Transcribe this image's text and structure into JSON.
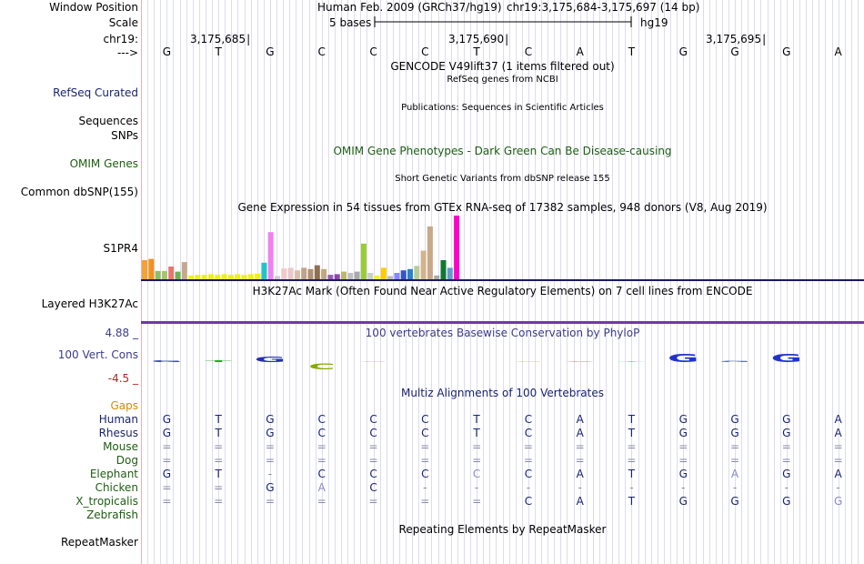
{
  "header": {
    "window_label": "Window Position",
    "assembly": "Human Feb. 2009 (GRCh37/hg19)",
    "position": "chr19:3,175,684-3,175,697 (14 bp)",
    "scale_label": "Scale",
    "scale_text": "5 bases",
    "scale_db": "hg19",
    "chrom_label": "chr19:",
    "strand_label": "--->",
    "coords": [
      "3,175,685",
      "3,175,690",
      "3,175,695"
    ]
  },
  "sequence": [
    "G",
    "T",
    "G",
    "C",
    "C",
    "C",
    "T",
    "C",
    "A",
    "T",
    "G",
    "G",
    "G",
    "A"
  ],
  "tracks": {
    "gencode_title": "GENCODE V49lift37 (1 items filtered out)",
    "refseq_title": "RefSeq genes from NCBI",
    "refseq_label": "RefSeq Curated",
    "pubs_title": "Publications: Sequences in Scientific Articles",
    "sequences_label": "Sequences",
    "snps_label": "SNPs",
    "omim_title": "OMIM Gene Phenotypes - Dark Green Can Be Disease-causing",
    "omim_label": "OMIM Genes",
    "dbsnp_title": "Short Genetic Variants from dbSNP release 155",
    "dbsnp_label": "Common dbSNP(155)",
    "gtex_title": "Gene Expression in 54 tissues from GTEx RNA-seq of 17382 samples, 948 donors (V8, Aug 2019)",
    "gtex_label": "S1PR4",
    "h3k_title": "H3K27Ac Mark (Often Found Near Active Regulatory Elements) on 7 cell lines from ENCODE",
    "h3k_label": "Layered H3K27Ac",
    "phylop_title": "100 vertebrates Basewise Conservation by PhyloP",
    "phylop_label": "100 Vert. Cons",
    "phylop_max": "4.88 _",
    "phylop_min": "-4.5 _",
    "multiz_title": "Multiz Alignments of 100 Vertebrates",
    "gaps_label": "Gaps",
    "repeat_title": "Repeating Elements by RepeatMasker",
    "repeat_label": "RepeatMasker"
  },
  "colors": {
    "h3k_line": "#1a1a5e",
    "phylop_line": "#6f3aa6",
    "gtex_max": "#ff00cc",
    "species_text": "#1d5e12",
    "human_text": "#1a2370"
  },
  "gtex": [
    {
      "v": 0.3,
      "c": "#f4a234"
    },
    {
      "v": 0.32,
      "c": "#f09122"
    },
    {
      "v": 0.13,
      "c": "#8fbc6a"
    },
    {
      "v": 0.13,
      "c": "#a7c46b"
    },
    {
      "v": 0.2,
      "c": "#e97571"
    },
    {
      "v": 0.12,
      "c": "#6eb15a"
    },
    {
      "v": 0.27,
      "c": "#c6a890"
    },
    {
      "v": 0.06,
      "c": "#eeee22"
    },
    {
      "v": 0.07,
      "c": "#eeee22"
    },
    {
      "v": 0.07,
      "c": "#eeee22"
    },
    {
      "v": 0.08,
      "c": "#eeee22"
    },
    {
      "v": 0.07,
      "c": "#eeee22"
    },
    {
      "v": 0.08,
      "c": "#eeee22"
    },
    {
      "v": 0.07,
      "c": "#eeee22"
    },
    {
      "v": 0.08,
      "c": "#eeee22"
    },
    {
      "v": 0.07,
      "c": "#eeee22"
    },
    {
      "v": 0.08,
      "c": "#eeee22"
    },
    {
      "v": 0.09,
      "c": "#eeee22"
    },
    {
      "v": 0.26,
      "c": "#22c4cc"
    },
    {
      "v": 0.74,
      "c": "#ee82ee"
    },
    {
      "v": 0.05,
      "c": "#cccccc"
    },
    {
      "v": 0.17,
      "c": "#f2c8c8"
    },
    {
      "v": 0.18,
      "c": "#e8c8c8"
    },
    {
      "v": 0.14,
      "c": "#d8c0a8"
    },
    {
      "v": 0.18,
      "c": "#bfa38a"
    },
    {
      "v": 0.16,
      "c": "#b09070"
    },
    {
      "v": 0.22,
      "c": "#8c7050"
    },
    {
      "v": 0.16,
      "c": "#c0a880"
    },
    {
      "v": 0.07,
      "c": "#9b59b6"
    },
    {
      "v": 0.08,
      "c": "#8e44ad"
    },
    {
      "v": 0.12,
      "c": "#bdb76b"
    },
    {
      "v": 0.1,
      "c": "#c0c0c0"
    },
    {
      "v": 0.12,
      "c": "#aaaaaa"
    },
    {
      "v": 0.56,
      "c": "#99cc33"
    },
    {
      "v": 0.1,
      "c": "#cccccc"
    },
    {
      "v": 0.06,
      "c": "#f0f030"
    },
    {
      "v": 0.18,
      "c": "#ffcc00"
    },
    {
      "v": 0.05,
      "c": "#bbbbbb"
    },
    {
      "v": 0.1,
      "c": "#8888ff"
    },
    {
      "v": 0.14,
      "c": "#3355cc"
    },
    {
      "v": 0.16,
      "c": "#2a82c8"
    },
    {
      "v": 0.21,
      "c": "#b8cc99"
    },
    {
      "v": 0.45,
      "c": "#d2b48c"
    },
    {
      "v": 0.83,
      "c": "#c9a88a"
    },
    {
      "v": 0.06,
      "c": "#aaaaaa"
    },
    {
      "v": 0.3,
      "c": "#117733"
    },
    {
      "v": 0.18,
      "c": "#6699cc"
    },
    {
      "v": 1.0,
      "c": "#ff00cc"
    }
  ],
  "phylop": [
    {
      "v": 0.1,
      "c": "#2233aa"
    },
    {
      "v": 0.1,
      "c": "#22aa22"
    },
    {
      "v": 0.35,
      "c": "#2233aa"
    },
    {
      "v": -0.4,
      "c": "#88aa00"
    },
    {
      "v": 0.02,
      "c": "#aaaa22"
    },
    {
      "v": 0.0,
      "c": "#ffffff"
    },
    {
      "v": 0.0,
      "c": "#ffffff"
    },
    {
      "v": 0.05,
      "c": "#aaaa22"
    },
    {
      "v": 0.05,
      "c": "#dd4444"
    },
    {
      "v": 0.05,
      "c": "#22cc22"
    },
    {
      "v": 0.55,
      "c": "#2233cc"
    },
    {
      "v": 0.08,
      "c": "#4455cc"
    },
    {
      "v": 0.55,
      "c": "#2233cc"
    },
    {
      "v": 0.0,
      "c": "#ffffff"
    }
  ],
  "species": [
    {
      "name": "Human",
      "color": "#1a2370",
      "row": [
        "G",
        "T",
        "G",
        "C",
        "C",
        "C",
        "T",
        "C",
        "A",
        "T",
        "G",
        "G",
        "G",
        "A"
      ]
    },
    {
      "name": "Rhesus",
      "color": "#1a2370",
      "row": [
        "G",
        "T",
        "G",
        "C",
        "C",
        "C",
        "T",
        "C",
        "A",
        "T",
        "G",
        "G",
        "G",
        "A"
      ]
    },
    {
      "name": "Mouse",
      "color": "#1d5e12",
      "row": [
        "=",
        "=",
        "=",
        "=",
        "=",
        "=",
        "=",
        "=",
        "=",
        "=",
        "=",
        "=",
        "=",
        "="
      ]
    },
    {
      "name": "Dog",
      "color": "#1d5e12",
      "row": [
        "=",
        "=",
        "=",
        "=",
        "=",
        "=",
        "=",
        "=",
        "=",
        "=",
        "=",
        "=",
        "=",
        "="
      ]
    },
    {
      "name": "Elephant",
      "color": "#1d5e12",
      "row": [
        "G",
        "T",
        "-",
        "C",
        "C",
        "C",
        "C",
        "C",
        "A",
        "T",
        "G",
        "A",
        "G",
        "A"
      ]
    },
    {
      "name": "Chicken",
      "color": "#1d5e12",
      "row": [
        "=",
        "=",
        "G",
        "A",
        "C",
        "-",
        "-",
        "-",
        "-",
        "-",
        "-",
        "-",
        "-",
        "-"
      ]
    },
    {
      "name": "X_tropicalis",
      "color": "#1d5e12",
      "row": [
        "=",
        "=",
        "=",
        "=",
        "=",
        "=",
        "=",
        "C",
        "A",
        "T",
        "G",
        "G",
        "G",
        "G"
      ]
    },
    {
      "name": "Zebrafish",
      "color": "#1d5e12",
      "row": [
        "",
        "",
        "",
        "",
        "",
        "",
        "",
        "",
        "",
        "",
        "",
        "",
        "",
        ""
      ]
    }
  ]
}
